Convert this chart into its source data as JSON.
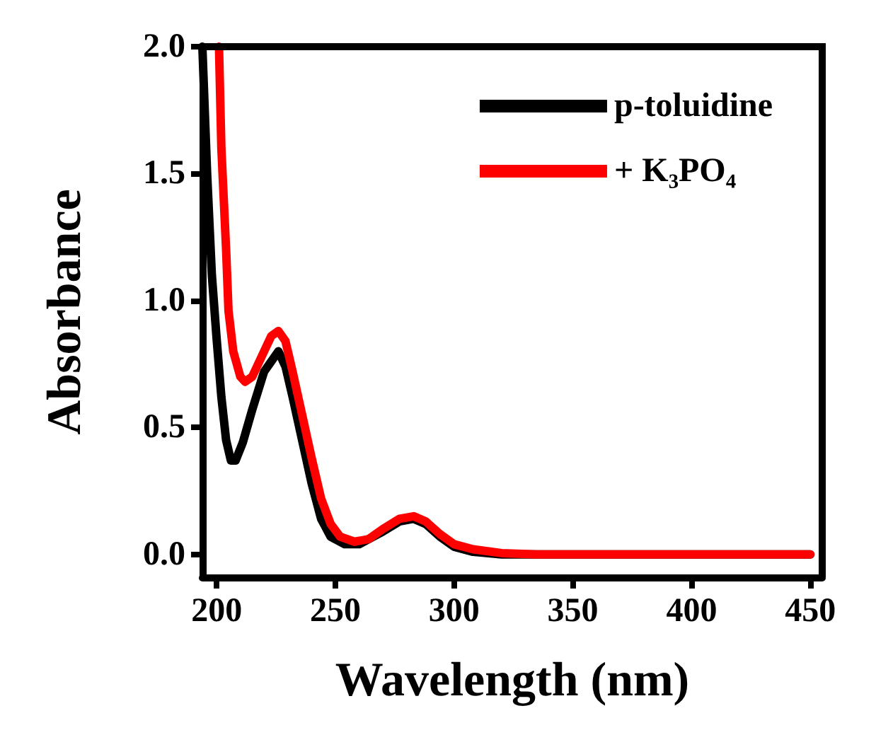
{
  "chart_data": {
    "type": "line",
    "xlabel": "Wavelength (nm)",
    "ylabel": "Absorbance",
    "xlim": [
      194,
      455
    ],
    "ylim": [
      -0.09,
      2.0
    ],
    "xticks": [
      200,
      250,
      300,
      350,
      400,
      450
    ],
    "yticks": [
      {
        "value": 0,
        "label": "0.0"
      },
      {
        "value": 0.5,
        "label": "0.5"
      },
      {
        "value": 1,
        "label": "1.0"
      },
      {
        "value": 1.5,
        "label": "1.5"
      },
      {
        "value": 2,
        "label": "2.0"
      }
    ],
    "grid": false,
    "legend": "top right",
    "marker": "none",
    "line_style": "solid",
    "series": [
      {
        "name": "p-toluidine",
        "color": "#000000",
        "x": [
          194,
          196,
          198,
          200,
          202,
          204,
          206,
          208,
          211,
          215,
          220,
          226,
          229,
          232,
          236,
          240,
          244,
          248,
          254,
          260,
          270,
          277,
          283,
          288,
          294,
          300,
          308,
          320,
          450
        ],
        "values": [
          2.0,
          1.5,
          1.1,
          0.85,
          0.62,
          0.45,
          0.37,
          0.37,
          0.44,
          0.57,
          0.72,
          0.8,
          0.74,
          0.62,
          0.45,
          0.28,
          0.14,
          0.07,
          0.04,
          0.04,
          0.09,
          0.13,
          0.14,
          0.12,
          0.07,
          0.03,
          0.01,
          0,
          0
        ]
      },
      {
        "name": "+ K₃PO₄",
        "color": "#ff0000",
        "x": [
          201,
          202,
          204,
          205,
          207,
          210,
          212,
          215,
          219,
          223,
          226,
          229,
          232,
          236,
          240,
          244,
          248,
          252,
          258,
          264,
          270,
          277,
          283,
          288,
          294,
          300,
          308,
          320,
          335,
          450
        ],
        "values": [
          2.0,
          1.6,
          1.2,
          0.96,
          0.8,
          0.7,
          0.68,
          0.7,
          0.78,
          0.86,
          0.88,
          0.84,
          0.72,
          0.55,
          0.38,
          0.22,
          0.12,
          0.07,
          0.05,
          0.06,
          0.1,
          0.14,
          0.15,
          0.13,
          0.08,
          0.04,
          0.02,
          0.005,
          0,
          0
        ]
      }
    ]
  }
}
